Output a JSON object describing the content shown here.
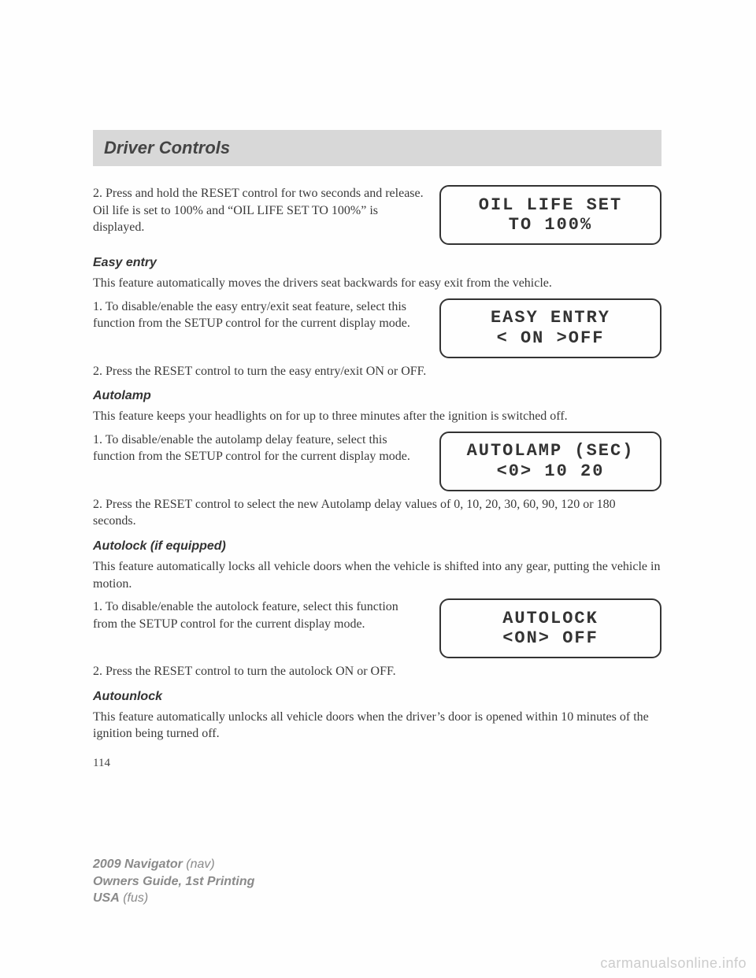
{
  "header": {
    "title": "Driver Controls"
  },
  "oil": {
    "step2": "2. Press and hold the RESET control for two seconds and release. Oil life is set to 100% and “OIL LIFE SET TO 100%” is displayed.",
    "lcd1": "OIL LIFE SET",
    "lcd2": "TO 100%"
  },
  "easy": {
    "heading": "Easy entry",
    "intro": "This feature automatically moves the drivers seat backwards for easy exit from the vehicle.",
    "step1": "1. To disable/enable the easy entry/exit seat feature, select this function from the SETUP control for the current display mode.",
    "step2": "2. Press the RESET control to turn the easy entry/exit ON or OFF.",
    "lcd1": "EASY ENTRY",
    "lcd2": "< ON >OFF"
  },
  "autolamp": {
    "heading": "Autolamp",
    "intro": "This feature keeps your headlights on for up to three minutes after the ignition is switched off.",
    "step1": "1. To disable/enable the autolamp delay feature, select this function from the SETUP control for the current display mode.",
    "step2": "2. Press the RESET control to select the new Autolamp delay values of 0, 10, 20, 30, 60, 90, 120 or 180 seconds.",
    "lcd1": "AUTOLAMP (SEC)",
    "lcd2": "<0> 10  20"
  },
  "autolock": {
    "heading": "Autolock (if equipped)",
    "intro": "This feature automatically locks all vehicle doors when the vehicle is shifted into any gear, putting the vehicle in motion.",
    "step1": "1. To disable/enable the autolock feature, select this function from the SETUP control for the current display mode.",
    "step2": "2. Press the RESET control to turn the autolock ON or OFF.",
    "lcd1": "AUTOLOCK",
    "lcd2": "<ON> OFF"
  },
  "autounlock": {
    "heading": "Autounlock",
    "intro": "This feature automatically unlocks all vehicle doors when the driver’s door is opened within 10 minutes of the ignition being turned off."
  },
  "pageNumber": "114",
  "footer": {
    "l1a": "2009 Navigator",
    "l1b": " (nav)",
    "l2": "Owners Guide, 1st Printing",
    "l3a": "USA",
    "l3b": " (fus)"
  },
  "watermark": "carmanualsonline.info"
}
